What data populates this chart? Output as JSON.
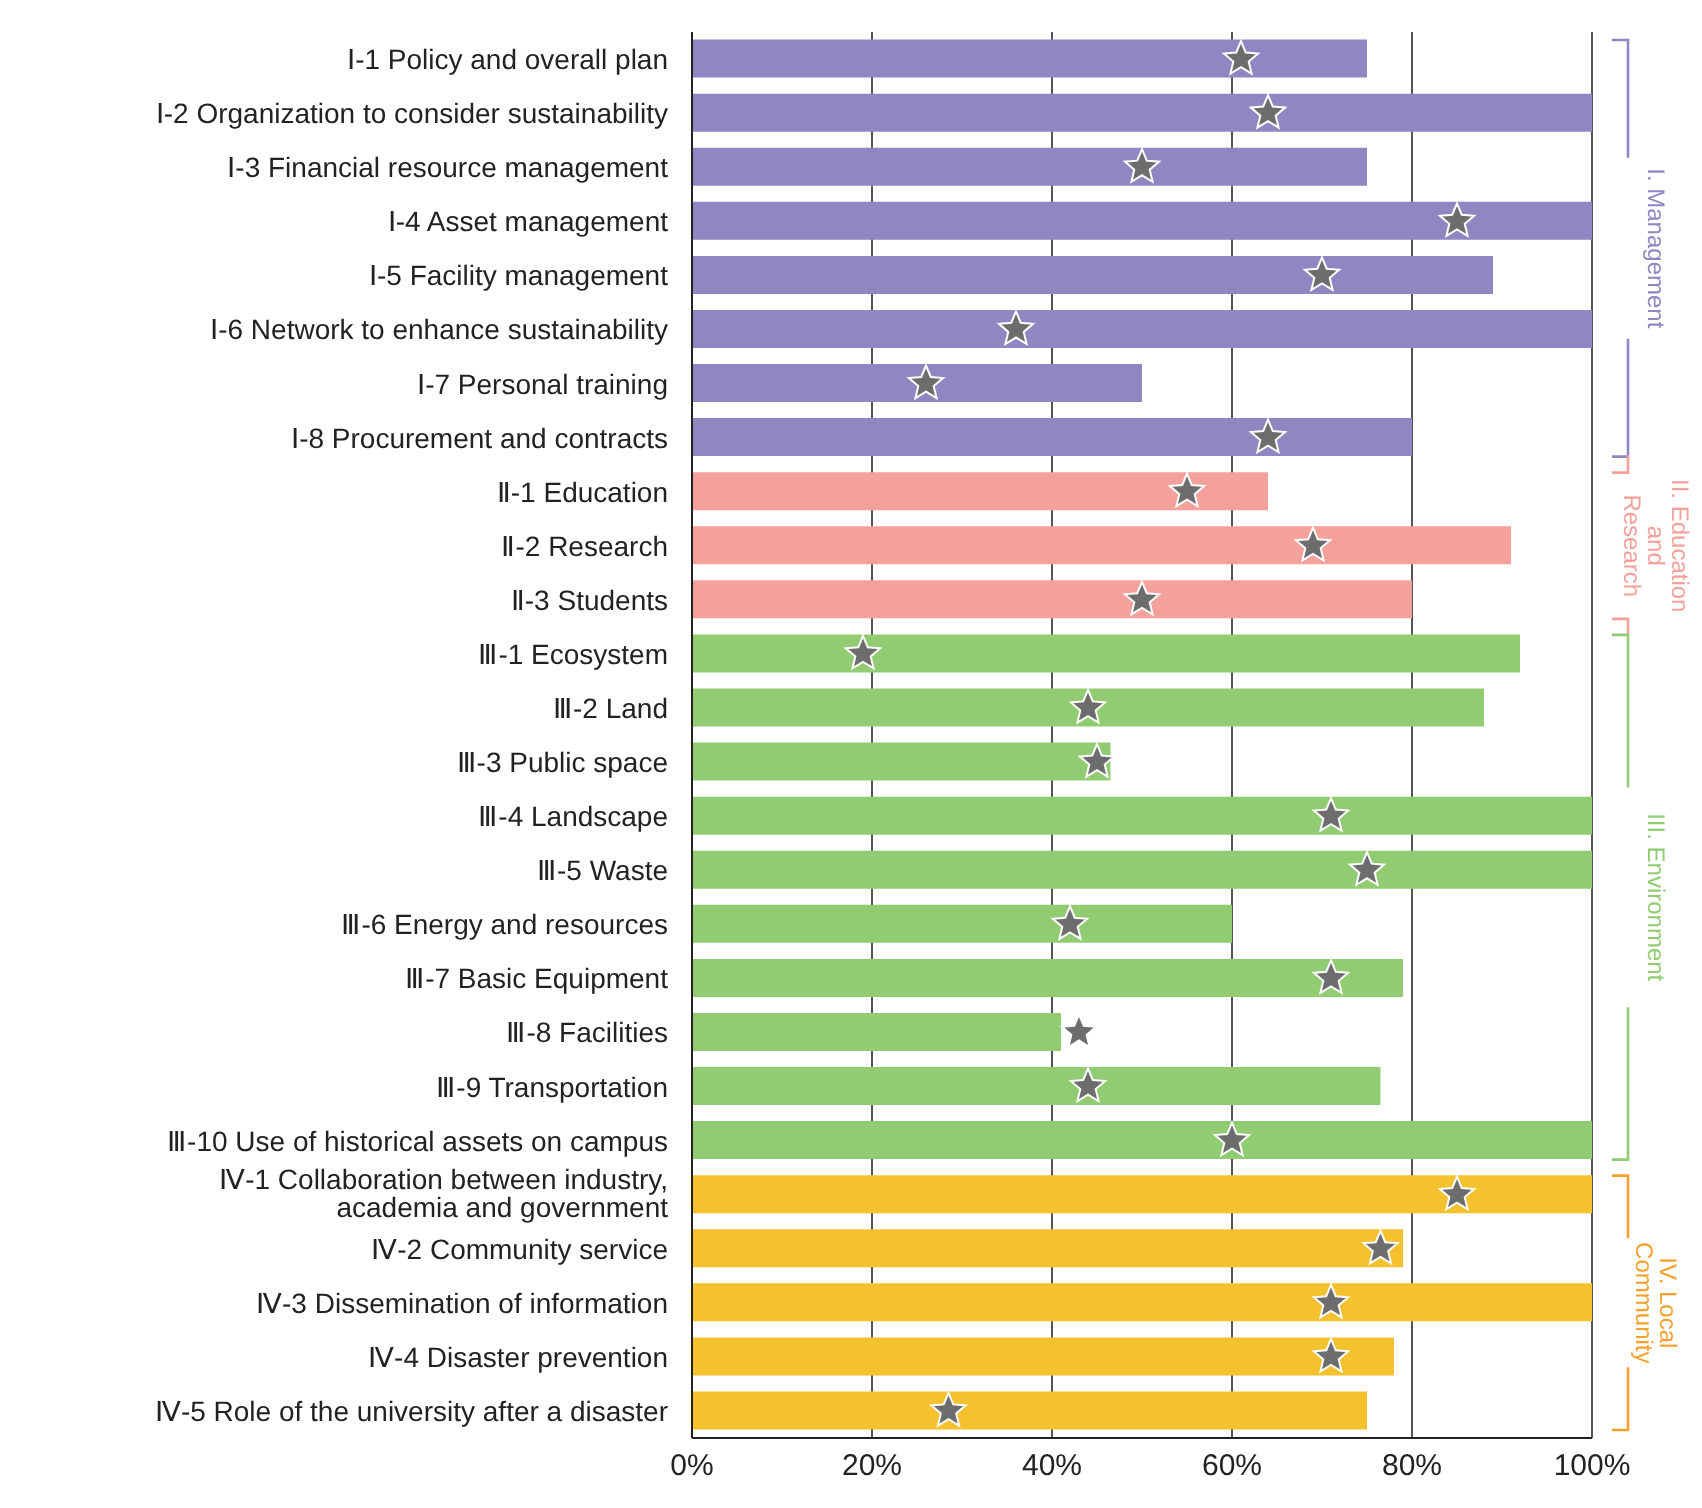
{
  "chart_data": {
    "type": "bar",
    "orientation": "horizontal",
    "categories": [
      "Ⅰ-1 Policy and overall plan",
      "Ⅰ-2 Organization to consider sustainability",
      "Ⅰ-3 Financial resource management",
      "Ⅰ-4 Asset management",
      "Ⅰ-5 Facility management",
      "Ⅰ-6 Network to enhance sustainability",
      "Ⅰ-7 Personal training",
      "Ⅰ-8 Procurement and contracts",
      "Ⅱ-1 Education",
      "Ⅱ-2 Research",
      "Ⅱ-3 Students",
      "Ⅲ-1 Ecosystem",
      "Ⅲ-2 Land",
      "Ⅲ-3 Public space",
      "Ⅲ-4 Landscape",
      "Ⅲ-5 Waste",
      "Ⅲ-6 Energy and resources",
      "Ⅲ-7 Basic Equipment",
      "Ⅲ-8 Facilities",
      "Ⅲ-9 Transportation",
      "Ⅲ-10 Use of historical assets on campus",
      "Ⅳ-1 Collaboration between industry,\nacademia and government",
      "Ⅳ-2 Community service",
      "Ⅳ-3 Dissemination of information",
      "Ⅳ-4 Disaster prevention",
      "Ⅳ-5 Role of the university after a disaster"
    ],
    "series": [
      {
        "values": [
          75,
          100,
          75,
          100,
          89,
          100,
          50,
          80,
          64,
          91,
          80,
          92,
          88,
          46.5,
          100,
          100,
          60,
          79,
          41,
          76.5,
          100,
          100,
          79,
          100,
          78,
          75
        ],
        "colors": [
          "#8e87c2",
          "#8e87c2",
          "#8e87c2",
          "#8e87c2",
          "#8e87c2",
          "#8e87c2",
          "#8e87c2",
          "#8e87c2",
          "#f4a19c",
          "#f4a19c",
          "#f4a19c",
          "#92cc72",
          "#92cc72",
          "#92cc72",
          "#92cc72",
          "#92cc72",
          "#92cc72",
          "#92cc72",
          "#92cc72",
          "#92cc72",
          "#92cc72",
          "#f4c12f",
          "#f4c12f",
          "#f4c12f",
          "#f4c12f",
          "#f4c12f"
        ]
      },
      {
        "type": "scatter",
        "marker": "star",
        "color": "#6d6d6d",
        "values": [
          61,
          64,
          50,
          85,
          70,
          36,
          26,
          64,
          55,
          69,
          50,
          19,
          44,
          45,
          71,
          75,
          42,
          71,
          43,
          44,
          60,
          85,
          76.5,
          71,
          71,
          28.5
        ]
      }
    ],
    "xlim": [
      0,
      100
    ],
    "xticks": [
      {
        "value": 0,
        "label": "0%"
      },
      {
        "value": 20,
        "label": "20%"
      },
      {
        "value": 40,
        "label": "40%"
      },
      {
        "value": 60,
        "label": "60%"
      },
      {
        "value": 80,
        "label": "80%"
      },
      {
        "value": 100,
        "label": "100%"
      }
    ],
    "grid": "x",
    "legend": false,
    "annotations": [
      "I. Management",
      "II. Education\nand\nResearch",
      "III. Environment",
      "IV. Local\nCommunity"
    ]
  }
}
